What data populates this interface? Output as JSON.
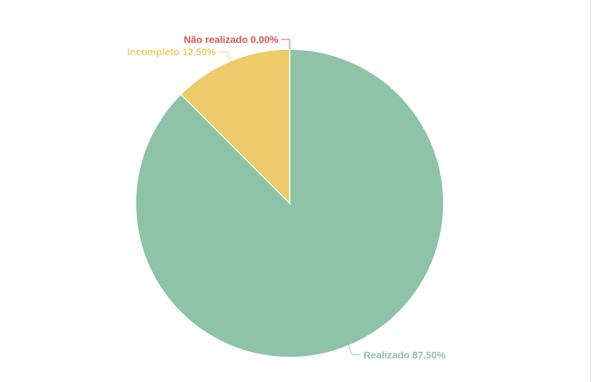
{
  "chart_data": {
    "type": "pie",
    "slices": [
      {
        "label": "Realizado",
        "value": 87.5,
        "display": "87.50%",
        "color": "#8ec3a7"
      },
      {
        "label": "Incompleto",
        "value": 12.5,
        "display": "12.50%",
        "color": "#eecb6b"
      },
      {
        "label": "Não realizado",
        "value": 0.0,
        "display": "0.00%",
        "color": "#d9534f"
      }
    ],
    "label_format": "{label} {display}",
    "start_angle_deg": 0,
    "direction": "clockwise"
  }
}
